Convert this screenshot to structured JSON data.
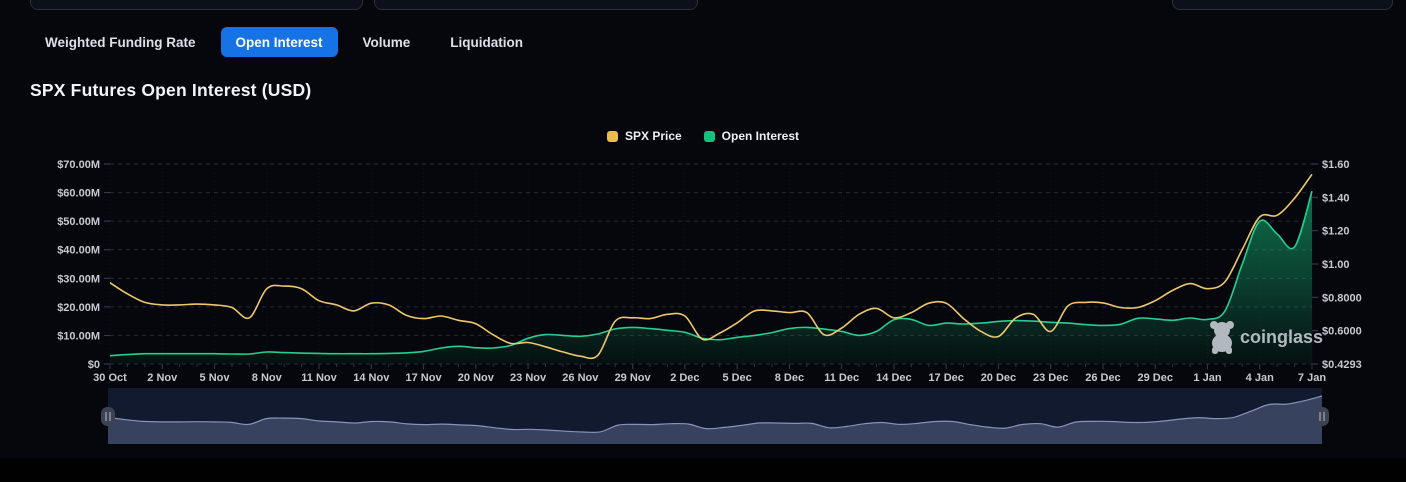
{
  "top_inputs": [
    {
      "value": ""
    },
    {
      "value": ""
    },
    {
      "value": ""
    }
  ],
  "tabs": [
    {
      "label": "Weighted Funding Rate",
      "active": false
    },
    {
      "label": "Open Interest",
      "active": true
    },
    {
      "label": "Volume",
      "active": false
    },
    {
      "label": "Liquidation",
      "active": false
    }
  ],
  "title": "SPX Futures Open Interest (USD)",
  "legend": [
    {
      "label": "SPX Price",
      "color": "#ecbb52"
    },
    {
      "label": "Open Interest",
      "color": "#17c07f"
    }
  ],
  "watermark": {
    "text": "coinglass"
  },
  "colors": {
    "background": "#05070c",
    "active_tab": "#1673e6",
    "price_line": "#eec76d",
    "oi_line": "#27cd92",
    "oi_fill": "#16b878",
    "grid": "#262b36",
    "navigator_bg": "#121a30",
    "navigator_fill": "#3a4561",
    "navigator_line": "#8793ba"
  },
  "chart_data": {
    "type": "line+area",
    "title": "SPX Futures Open Interest (USD)",
    "x_start": "30 Oct",
    "x_end": "7 Jan",
    "frequency": "daily",
    "x_tick_every": 3,
    "x_tick_labels": [
      "30 Oct",
      "2 Nov",
      "5 Nov",
      "8 Nov",
      "11 Nov",
      "14 Nov",
      "17 Nov",
      "20 Nov",
      "23 Nov",
      "26 Nov",
      "29 Nov",
      "2 Dec",
      "5 Dec",
      "8 Dec",
      "11 Dec",
      "14 Dec",
      "17 Dec",
      "20 Dec",
      "23 Dec",
      "26 Dec",
      "29 Dec",
      "1 Jan",
      "4 Jan",
      "7 Jan"
    ],
    "left_axis": {
      "labels": [
        "$70.00M",
        "$60.00M",
        "$50.00M",
        "$40.00M",
        "$30.00M",
        "$20.00M",
        "$10.00M",
        "$0"
      ],
      "min": 0,
      "max": 70,
      "unit": "USD millions"
    },
    "right_axis": {
      "labels": [
        "$1.60",
        "$1.40",
        "$1.20",
        "$1.00",
        "$0.8000",
        "$0.6000",
        "$0.4293"
      ],
      "min": 0.4293,
      "max": 1.6,
      "unit": "USD"
    },
    "grid": true,
    "legend_position": "top-center",
    "series": [
      {
        "name": "SPX Price",
        "type": "line",
        "axis": "right",
        "color": "#eec76d",
        "values": [
          0.905,
          0.84,
          0.79,
          0.775,
          0.775,
          0.78,
          0.775,
          0.76,
          0.7,
          0.87,
          0.885,
          0.87,
          0.8,
          0.775,
          0.74,
          0.785,
          0.775,
          0.715,
          0.695,
          0.71,
          0.685,
          0.665,
          0.6,
          0.55,
          0.555,
          0.53,
          0.5,
          0.475,
          0.48,
          0.68,
          0.7,
          0.695,
          0.72,
          0.71,
          0.575,
          0.61,
          0.67,
          0.74,
          0.74,
          0.73,
          0.73,
          0.6,
          0.64,
          0.72,
          0.755,
          0.7,
          0.73,
          0.785,
          0.785,
          0.695,
          0.62,
          0.59,
          0.7,
          0.72,
          0.62,
          0.77,
          0.79,
          0.787,
          0.76,
          0.76,
          0.8,
          0.86,
          0.9,
          0.87,
          0.91,
          1.1,
          1.29,
          1.3,
          1.4,
          1.54
        ]
      },
      {
        "name": "Open Interest",
        "type": "area",
        "axis": "left",
        "color": "#27cd92",
        "values_unit": "USD millions",
        "values": [
          2.9,
          3.3,
          3.6,
          3.6,
          3.6,
          3.6,
          3.6,
          3.5,
          3.5,
          4.2,
          4.0,
          3.8,
          3.7,
          3.6,
          3.6,
          3.6,
          3.7,
          3.9,
          4.4,
          5.6,
          6.2,
          5.7,
          5.6,
          6.5,
          9.0,
          10.3,
          10.0,
          9.7,
          10.5,
          12.3,
          12.8,
          12.4,
          11.8,
          11.1,
          9.0,
          8.5,
          9.3,
          10.0,
          11.0,
          12.4,
          12.8,
          12.2,
          11.4,
          10.0,
          11.4,
          15.5,
          15.6,
          13.5,
          14.3,
          14.0,
          14.3,
          14.9,
          15.2,
          15.0,
          14.6,
          14.3,
          13.8,
          13.5,
          13.9,
          16.0,
          15.8,
          15.3,
          16.1,
          15.6,
          18.5,
          35.0,
          50.0,
          45.5,
          41.0,
          60.5
        ]
      }
    ],
    "navigator": {
      "series": "SPX Price"
    }
  }
}
